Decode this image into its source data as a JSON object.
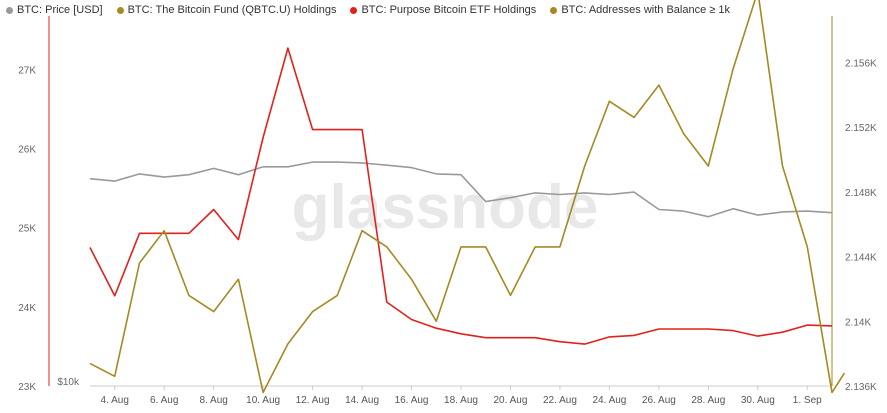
{
  "legend": [
    {
      "label": "BTC: Price [USD]",
      "color": "#9a9a9a"
    },
    {
      "label": "BTC: The Bitcoin Fund (QBTC.U) Holdings",
      "color": "#a48a22"
    },
    {
      "label": "BTC: Purpose Bitcoin ETF Holdings",
      "color": "#e0221d"
    },
    {
      "label": "BTC: Addresses with Balance ≥ 1k",
      "color": "#a48a22"
    }
  ],
  "watermark": "glassnode",
  "chart_data": {
    "type": "line",
    "x_tick_labels": [
      "4. Aug",
      "6. Aug",
      "8. Aug",
      "10. Aug",
      "12. Aug",
      "14. Aug",
      "16. Aug",
      "18. Aug",
      "20. Aug",
      "22. Aug",
      "24. Aug",
      "26. Aug",
      "28. Aug",
      "30. Aug",
      "1. Sep"
    ],
    "x_range": [
      "2021-08-03",
      "2021-09-02"
    ],
    "y_left": {
      "ticks": [
        "23K",
        "24K",
        "25K",
        "26K",
        "27K"
      ],
      "tick_values": [
        23000,
        24000,
        25000,
        26000,
        27000
      ],
      "range": [
        23000,
        27600
      ],
      "extra_label": "$10k"
    },
    "y_right": {
      "ticks": [
        "2.136K",
        "2.14K",
        "2.144K",
        "2.148K",
        "2.152K",
        "2.156K"
      ],
      "tick_values": [
        2136,
        2140,
        2144,
        2148,
        2152,
        2156
      ],
      "range": [
        2136,
        2158.5
      ]
    },
    "series": [
      {
        "name": "BTC: Price [USD]",
        "axis": "left",
        "color": "#9a9a9a",
        "x": [
          "2021-08-03",
          "2021-08-04",
          "2021-08-05",
          "2021-08-06",
          "2021-08-07",
          "2021-08-08",
          "2021-08-09",
          "2021-08-10",
          "2021-08-11",
          "2021-08-12",
          "2021-08-13",
          "2021-08-14",
          "2021-08-15",
          "2021-08-16",
          "2021-08-17",
          "2021-08-18",
          "2021-08-19",
          "2021-08-20",
          "2021-08-21",
          "2021-08-22",
          "2021-08-23",
          "2021-08-24",
          "2021-08-25",
          "2021-08-26",
          "2021-08-27",
          "2021-08-28",
          "2021-08-29",
          "2021-08-30",
          "2021-08-31",
          "2021-09-01",
          "2021-09-02"
        ],
        "y": [
          25620,
          25590,
          25680,
          25640,
          25670,
          25750,
          25670,
          25770,
          25770,
          25830,
          25830,
          25820,
          25790,
          25760,
          25680,
          25670,
          25330,
          25380,
          25440,
          25420,
          25440,
          25420,
          25450,
          25230,
          25210,
          25140,
          25240,
          25160,
          25200,
          25210,
          25190
        ]
      },
      {
        "name": "BTC: Purpose Bitcoin ETF Holdings",
        "axis": "left",
        "color": "#e0221d",
        "x": [
          "2021-08-03",
          "2021-08-04",
          "2021-08-05",
          "2021-08-06",
          "2021-08-07",
          "2021-08-08",
          "2021-08-09",
          "2021-08-10",
          "2021-08-11",
          "2021-08-12",
          "2021-08-13",
          "2021-08-14",
          "2021-08-15",
          "2021-08-16",
          "2021-08-17",
          "2021-08-18",
          "2021-08-19",
          "2021-08-20",
          "2021-08-21",
          "2021-08-22",
          "2021-08-23",
          "2021-08-24",
          "2021-08-25",
          "2021-08-26",
          "2021-08-27",
          "2021-08-28",
          "2021-08-29",
          "2021-08-30",
          "2021-08-31",
          "2021-09-01",
          "2021-09-02"
        ],
        "y": [
          24750,
          24140,
          24930,
          24930,
          24930,
          25230,
          24850,
          26140,
          27270,
          26240,
          26240,
          26240,
          24060,
          23840,
          23730,
          23660,
          23610,
          23610,
          23610,
          23560,
          23530,
          23620,
          23640,
          23720,
          23720,
          23720,
          23700,
          23630,
          23680,
          23770,
          23760
        ]
      },
      {
        "name": "BTC: Addresses with Balance ≥ 1k",
        "axis": "right",
        "color": "#a48a22",
        "x": [
          "2021-08-03",
          "2021-08-04",
          "2021-08-05",
          "2021-08-06",
          "2021-08-07",
          "2021-08-08",
          "2021-08-09",
          "2021-08-10",
          "2021-08-11",
          "2021-08-12",
          "2021-08-13",
          "2021-08-14",
          "2021-08-15",
          "2021-08-16",
          "2021-08-17",
          "2021-08-18",
          "2021-08-19",
          "2021-08-20",
          "2021-08-21",
          "2021-08-22",
          "2021-08-23",
          "2021-08-24",
          "2021-08-25",
          "2021-08-26",
          "2021-08-27",
          "2021-08-28",
          "2021-08-29",
          "2021-08-30",
          "2021-08-31",
          "2021-09-01",
          "2021-09-02",
          "2021-09-02T12:00"
        ],
        "y": [
          2137.4,
          2136.6,
          2143.6,
          2145.6,
          2141.6,
          2140.6,
          2142.6,
          2135.6,
          2138.6,
          2140.6,
          2141.6,
          2145.6,
          2144.6,
          2142.6,
          2140.0,
          2144.6,
          2144.6,
          2141.6,
          2144.6,
          2144.6,
          2149.6,
          2153.6,
          2152.6,
          2154.6,
          2151.6,
          2149.6,
          2155.6,
          2160.4,
          2149.6,
          2144.6,
          2135.6,
          2136.8
        ]
      }
    ]
  }
}
